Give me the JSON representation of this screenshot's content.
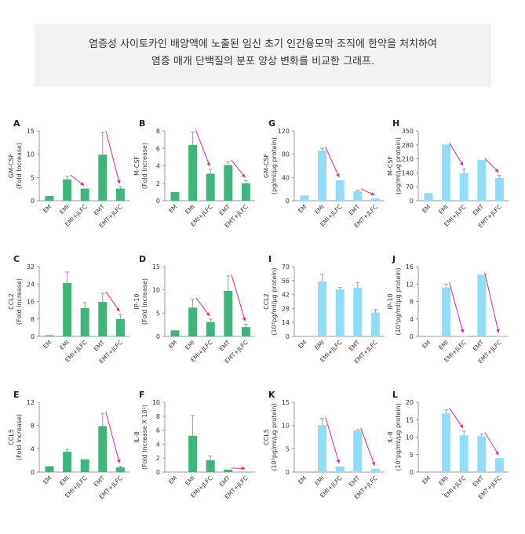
{
  "header": {
    "line1": "염증성 사이토카인 배양액에 노출된 임신 초기 인간융모막 조직에 한약을 처치하여",
    "line2": "염증 매개 단백질의 분포 양상 변화를 비교한 그래프."
  },
  "colors": {
    "green": "#3db57b",
    "blue": "#8fdcfb",
    "arrow": "#e9238a",
    "axis": "#999999",
    "text": "#333333"
  },
  "chart_data": [
    {
      "panel": "A",
      "type": "bar",
      "color": "green",
      "ylabel": [
        "GM-CSF",
        "(Fold Increase)"
      ],
      "ylim": [
        0,
        15
      ],
      "yticks": [
        "0",
        "5",
        "10",
        "15"
      ],
      "categories": [
        "EM",
        "EMI",
        "EMI+JLFC",
        "EMT",
        "EMT+JLFC"
      ],
      "values": [
        1,
        4.6,
        2.6,
        9.9,
        2.6
      ],
      "errors": [
        0,
        0.6,
        0,
        4.8,
        0.4
      ],
      "arrows": [
        [
          1,
          2
        ],
        [
          3,
          4
        ]
      ]
    },
    {
      "panel": "B",
      "type": "bar",
      "color": "green",
      "ylabel": [
        "M-CSF",
        "(Fold Increase)"
      ],
      "ylim": [
        0,
        8
      ],
      "yticks": [
        "0",
        "2",
        "4",
        "6",
        "8"
      ],
      "categories": [
        "EM",
        "EMI",
        "EMI+JLFC",
        "EMT",
        "EMT+JLFC"
      ],
      "values": [
        1,
        6.4,
        3.1,
        4.1,
        2
      ],
      "errors": [
        0,
        1.5,
        0.5,
        0.4,
        0.3
      ],
      "arrows": [
        [
          1,
          2
        ],
        [
          3,
          4
        ]
      ]
    },
    {
      "panel": "G",
      "type": "bar",
      "color": "blue",
      "ylabel": [
        "GM-CSF",
        "(pg/ml/µg protein)"
      ],
      "ylim": [
        0,
        120
      ],
      "yticks": [
        "0",
        "40",
        "80",
        "120"
      ],
      "categories": [
        "EM",
        "EMI",
        "EMI+JLFC",
        "EMT",
        "EMT+JLFC"
      ],
      "values": [
        9,
        86,
        35,
        16,
        4
      ],
      "errors": [
        0,
        4,
        0,
        2,
        0
      ],
      "arrows": [
        [
          1,
          2
        ],
        [
          3,
          4
        ]
      ]
    },
    {
      "panel": "H",
      "type": "bar",
      "color": "blue",
      "ylabel": [
        "M-CSF",
        "(pg/ml/µg protein)"
      ],
      "ylim": [
        0,
        350
      ],
      "yticks": [
        "0",
        "70",
        "140",
        "210",
        "280",
        "350"
      ],
      "categories": [
        "EM",
        "EMI",
        "EMI+JLFC",
        "EMT",
        "EMT+JLFC"
      ],
      "values": [
        38,
        282,
        138,
        205,
        115
      ],
      "errors": [
        0,
        0,
        22,
        0,
        12
      ],
      "arrows": [
        [
          1,
          2
        ],
        [
          3,
          4
        ]
      ]
    },
    {
      "panel": "C",
      "type": "bar",
      "color": "green",
      "ylabel": [
        "CCL2",
        "(Fold Increase)"
      ],
      "ylim": [
        0,
        32
      ],
      "yticks": [
        "0",
        "8",
        "16",
        "24",
        "32"
      ],
      "categories": [
        "EM",
        "EMI",
        "EMI+JLFC",
        "EMT",
        "EMT+JLFC"
      ],
      "values": [
        0.5,
        24.5,
        13,
        15.8,
        8
      ],
      "errors": [
        0,
        5,
        2.5,
        4,
        2
      ],
      "arrows": [
        [
          3,
          4
        ]
      ]
    },
    {
      "panel": "D",
      "type": "bar",
      "color": "green",
      "ylabel": [
        "IP-10",
        "(Fold Increase)"
      ],
      "ylim": [
        0,
        15
      ],
      "yticks": [
        "0",
        "5",
        "10",
        "15"
      ],
      "categories": [
        "EM",
        "EMI",
        "EMI+JLFC",
        "EMT",
        "EMT+JLFC"
      ],
      "values": [
        1.3,
        6.2,
        3.1,
        9.8,
        2
      ],
      "errors": [
        0,
        1.8,
        0.6,
        3.2,
        0.6
      ],
      "arrows": [
        [
          1,
          2
        ],
        [
          3,
          4
        ]
      ]
    },
    {
      "panel": "I",
      "type": "bar",
      "color": "blue",
      "ylabel": [
        "CCL2",
        "(10³pg/ml/µg protein)"
      ],
      "ylim": [
        0,
        70
      ],
      "yticks": [
        "0",
        "14",
        "28",
        "42",
        "56",
        "70"
      ],
      "categories": [
        "EM",
        "EMI",
        "EMI+JLFC",
        "EMT",
        "EMT+JLFC"
      ],
      "values": [
        0,
        55,
        47,
        49,
        24
      ],
      "errors": [
        0,
        7,
        2,
        5,
        3
      ],
      "arrows": []
    },
    {
      "panel": "J",
      "type": "bar",
      "color": "blue",
      "ylabel": [
        "IP-10",
        "(10³pg/ml/µg protein)"
      ],
      "ylim": [
        0,
        16
      ],
      "yticks": [
        "0",
        "4",
        "8",
        "12",
        "16"
      ],
      "categories": [
        "EM",
        "EMI",
        "EMI+JLFC",
        "EMT",
        "EMT+JLFC"
      ],
      "values": [
        0,
        11.2,
        0.1,
        14.2,
        0.1
      ],
      "errors": [
        0,
        0.8,
        0,
        0,
        0
      ],
      "arrows": [
        [
          1,
          2
        ],
        [
          3,
          4
        ]
      ]
    },
    {
      "panel": "E",
      "type": "bar",
      "color": "green",
      "ylabel": [
        "CCL5",
        "(Fold Increase)"
      ],
      "ylim": [
        0,
        12
      ],
      "yticks": [
        "0",
        "4",
        "8",
        "12"
      ],
      "categories": [
        "EM",
        "EMI",
        "EMI+JLFC",
        "EMT",
        "EMT+JLFC"
      ],
      "values": [
        1,
        3.5,
        2.2,
        7.9,
        0.8
      ],
      "errors": [
        0,
        0.4,
        0,
        2.2,
        0.2
      ],
      "arrows": [
        [
          3,
          4
        ]
      ]
    },
    {
      "panel": "F",
      "type": "bar",
      "color": "green",
      "ylabel": [
        "IL-8",
        "(Fold Increase X 10²)"
      ],
      "ylim": [
        0,
        10
      ],
      "yticks": [
        "0",
        "2",
        "4",
        "6",
        "8",
        "10"
      ],
      "categories": [
        "EM",
        "EMI",
        "EMI+JLFC",
        "EMT",
        "EMT+JLFC"
      ],
      "values": [
        0,
        5.2,
        1.7,
        0.35,
        0.05
      ],
      "errors": [
        0,
        2.9,
        0.6,
        0,
        0
      ],
      "arrows": [
        [
          3,
          4
        ]
      ]
    },
    {
      "panel": "K",
      "type": "bar",
      "color": "blue",
      "ylabel": [
        "CCL5",
        "(10³pg/ml/µg protein)"
      ],
      "ylim": [
        0,
        15
      ],
      "yticks": [
        "0",
        "5",
        "10",
        "15"
      ],
      "categories": [
        "EM",
        "EMI",
        "EMI+JLFC",
        "EMT",
        "EMT+JLFC"
      ],
      "values": [
        0,
        10.1,
        1.2,
        8.9,
        0.7
      ],
      "errors": [
        0,
        1.4,
        0,
        0.2,
        0
      ],
      "arrows": [
        [
          1,
          2
        ],
        [
          3,
          4
        ]
      ]
    },
    {
      "panel": "L",
      "type": "bar",
      "color": "blue",
      "ylabel": [
        "IL-8",
        "(10³pg/ml/µg protein)"
      ],
      "ylim": [
        0,
        20
      ],
      "yticks": [
        "0",
        "5",
        "10",
        "15",
        "20"
      ],
      "categories": [
        "EM",
        "EMI",
        "EMI+JLFC",
        "EMT",
        "EMT+JLFC"
      ],
      "values": [
        0,
        16.8,
        10.5,
        10.3,
        4
      ],
      "errors": [
        0,
        1,
        1.2,
        0.6,
        0
      ],
      "arrows": [
        [
          1,
          2
        ],
        [
          3,
          4
        ]
      ]
    }
  ]
}
